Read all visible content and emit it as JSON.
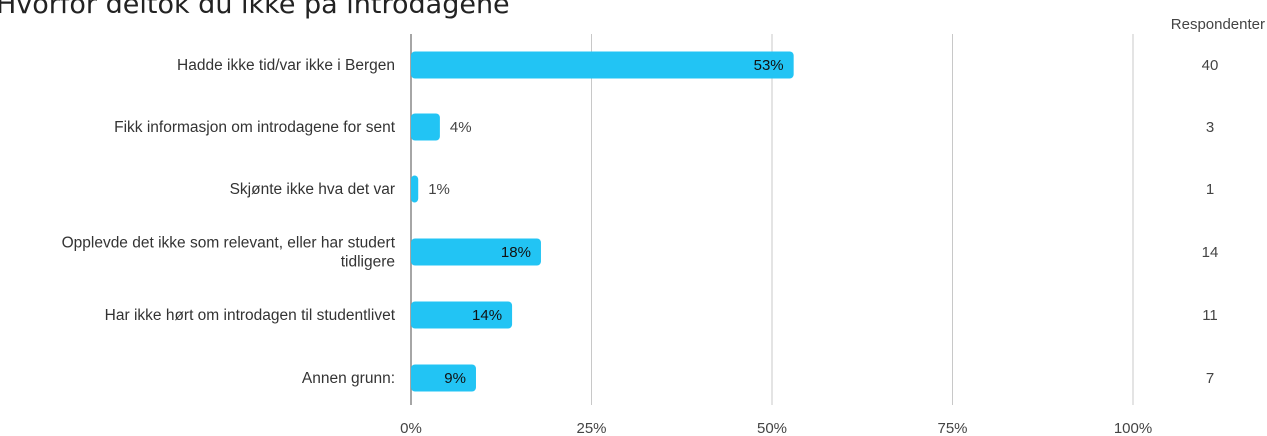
{
  "title": "Hvorfor deltok du ikke på introdagene",
  "respondents_header": "Respondenter",
  "chart_data": {
    "type": "bar",
    "orientation": "horizontal",
    "categories": [
      "Hadde ikke tid/var ikke i Bergen",
      "Fikk informasjon om introdagene for sent",
      "Skjønte ikke hva det var",
      "Opplevde det ikke som relevant, eller har studert tidligere",
      "Har ikke hørt om introdagen til studentlivet",
      "Annen grunn:"
    ],
    "category_lines": [
      [
        "Hadde ikke tid/var ikke i Bergen"
      ],
      [
        "Fikk informasjon om introdagene for sent"
      ],
      [
        "Skjønte ikke hva det var"
      ],
      [
        "Opplevde det ikke som relevant, eller har studert",
        "tidligere"
      ],
      [
        "Har ikke hørt om introdagen til studentlivet"
      ],
      [
        "Annen grunn:"
      ]
    ],
    "values": [
      53,
      4,
      1,
      18,
      14,
      9
    ],
    "value_labels": [
      "53%",
      "4%",
      "1%",
      "18%",
      "14%",
      "9%"
    ],
    "respondents": [
      "40",
      "3",
      "1",
      "14",
      "11",
      "7"
    ],
    "xlim": [
      0,
      100
    ],
    "x_ticks": [
      0,
      25,
      50,
      75,
      100
    ],
    "x_tick_labels": [
      "0%",
      "25%",
      "50%",
      "75%",
      "100%"
    ],
    "grid": true,
    "bar_color": "#22c4f4",
    "grid_color": "#c8c8c8",
    "axis_color": "#888888"
  }
}
